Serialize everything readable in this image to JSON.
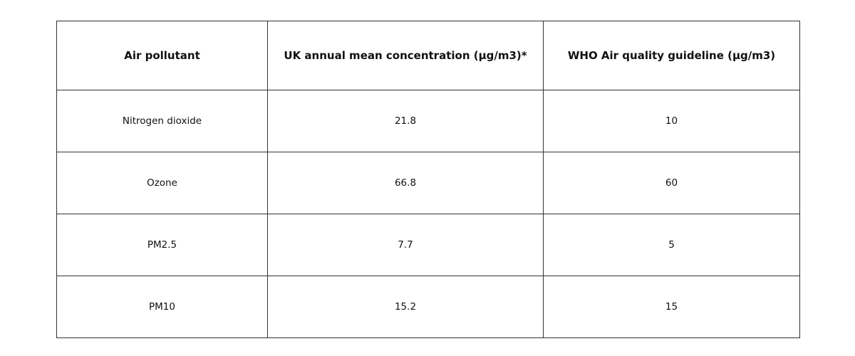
{
  "table": {
    "headers": [
      "Air pollutant",
      "UK annual mean concentration (µg/m3)*",
      "WHO Air quality guideline (µg/m3)"
    ],
    "rows": [
      [
        "Nitrogen dioxide",
        21.8,
        10
      ],
      [
        "Ozone",
        66.8,
        60
      ],
      [
        "PM2.5",
        7.7,
        5
      ],
      [
        "PM10",
        15.2,
        15
      ]
    ]
  }
}
